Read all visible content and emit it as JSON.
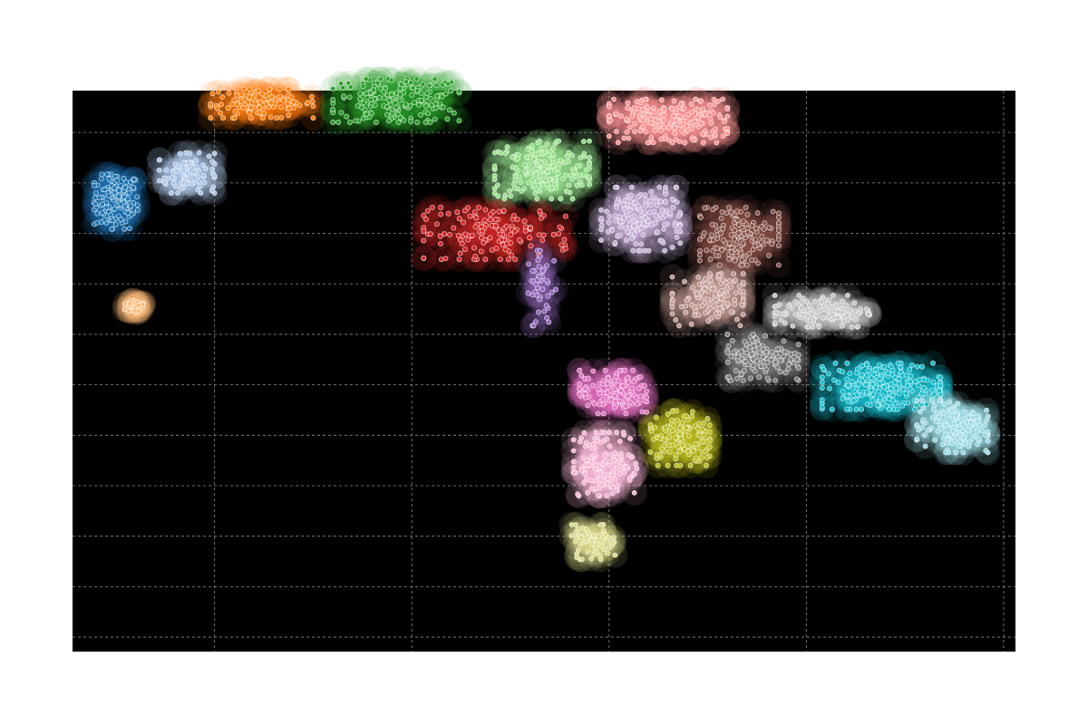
{
  "chart_data": {
    "type": "scatter",
    "title": "",
    "xlabel": "",
    "ylabel": "",
    "background": "#000000",
    "grid": true,
    "grid_style": "dashed",
    "axis_ticks_visible": false,
    "xlim": [
      -9.7,
      14.2
    ],
    "ylim": [
      -13.4,
      6.05
    ],
    "series": [
      {
        "color": "#1f77b4",
        "center": [
          -8.6,
          2.2
        ],
        "spread": [
          0.55,
          0.95
        ],
        "count": 130
      },
      {
        "color": "#ffbb78",
        "center": [
          -8.1,
          -1.4
        ],
        "spread": [
          0.28,
          0.28
        ],
        "count": 35
      },
      {
        "color": "#aec7e8",
        "center": [
          -6.8,
          3.2
        ],
        "spread": [
          0.7,
          0.7
        ],
        "count": 90
      },
      {
        "color": "#ff7f0e",
        "center": [
          -4.9,
          5.6
        ],
        "spread": [
          1.3,
          0.5
        ],
        "count": 120
      },
      {
        "color": "#2ca02c",
        "center": [
          -1.5,
          5.7
        ],
        "spread": [
          1.6,
          0.75
        ],
        "count": 190
      },
      {
        "color": "#98df8a",
        "center": [
          2.2,
          3.3
        ],
        "spread": [
          1.2,
          1.0
        ],
        "count": 200
      },
      {
        "color": "#ff9896",
        "center": [
          5.4,
          5.0
        ],
        "spread": [
          1.5,
          0.75
        ],
        "count": 210
      },
      {
        "color": "#d62728",
        "center": [
          1.0,
          1.1
        ],
        "spread": [
          1.8,
          0.9
        ],
        "count": 140
      },
      {
        "color": "#9467bd",
        "center": [
          2.2,
          -0.8
        ],
        "spread": [
          0.35,
          1.3
        ],
        "count": 45
      },
      {
        "color": "#c5b0d5",
        "center": [
          4.7,
          1.6
        ],
        "spread": [
          1.0,
          1.1
        ],
        "count": 170
      },
      {
        "color": "#8c564b",
        "center": [
          7.2,
          1.0
        ],
        "spread": [
          1.0,
          1.0
        ],
        "count": 150
      },
      {
        "color": "#c49c94",
        "center": [
          6.4,
          -1.2
        ],
        "spread": [
          0.9,
          0.9
        ],
        "count": 130
      },
      {
        "color": "#c7c7c7",
        "center": [
          9.3,
          -1.6
        ],
        "spread": [
          1.2,
          0.55
        ],
        "count": 130
      },
      {
        "color": "#7f7f7f",
        "center": [
          7.8,
          -3.2
        ],
        "spread": [
          0.9,
          0.8
        ],
        "count": 140
      },
      {
        "color": "#17becf",
        "center": [
          10.8,
          -4.2
        ],
        "spread": [
          1.5,
          0.8
        ],
        "count": 220
      },
      {
        "color": "#9edae5",
        "center": [
          12.6,
          -5.6
        ],
        "spread": [
          0.9,
          0.9
        ],
        "count": 150
      },
      {
        "color": "#e377c2",
        "center": [
          4.0,
          -4.4
        ],
        "spread": [
          0.85,
          0.75
        ],
        "count": 130
      },
      {
        "color": "#f7b6d2",
        "center": [
          3.8,
          -6.9
        ],
        "spread": [
          0.8,
          1.1
        ],
        "count": 150
      },
      {
        "color": "#bcbd22",
        "center": [
          5.7,
          -6.0
        ],
        "spread": [
          0.75,
          0.95
        ],
        "count": 130
      },
      {
        "color": "#dbdb8d",
        "center": [
          3.5,
          -9.6
        ],
        "spread": [
          0.55,
          0.6
        ],
        "count": 65
      }
    ]
  }
}
